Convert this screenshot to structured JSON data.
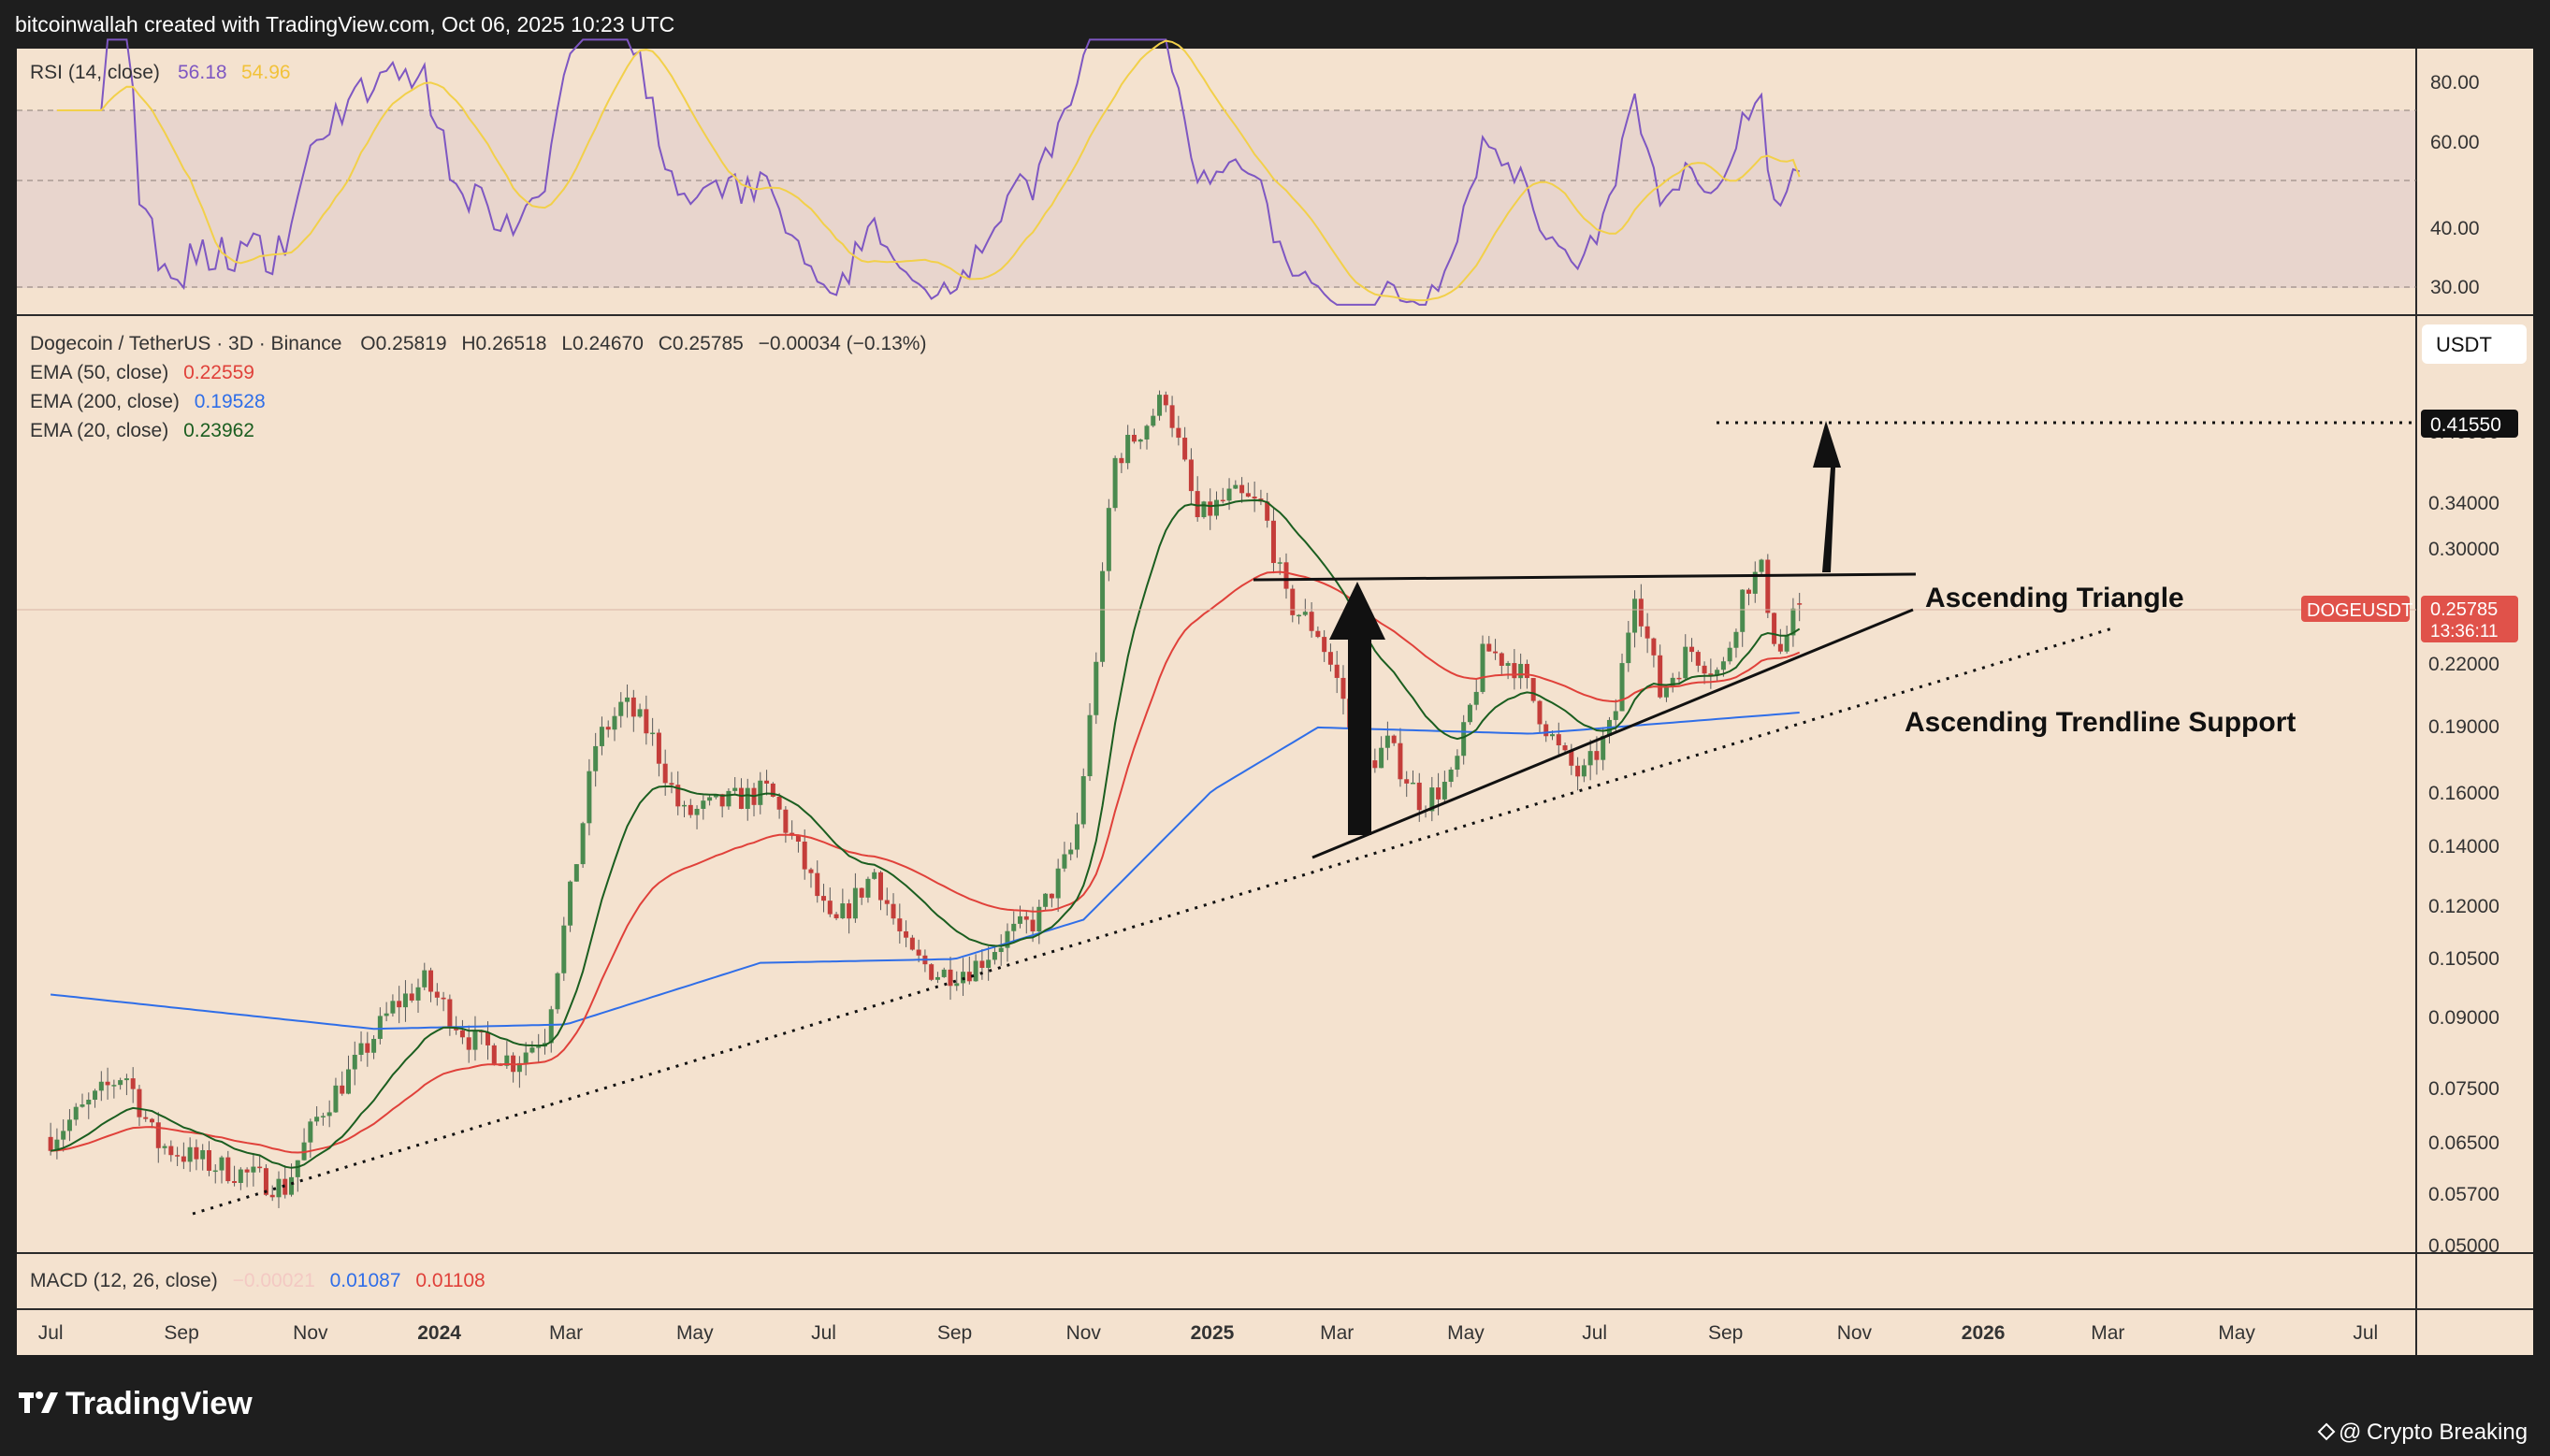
{
  "header": {
    "credit": "bitcoinwallah created with TradingView.com, Oct 06, 2025 10:23 UTC"
  },
  "rsi": {
    "label": "RSI (14, close)",
    "value": "56.18",
    "ma_value": "54.96",
    "line_color": "#7e57c2",
    "ma_color": "#f2d04a",
    "bands": [
      70,
      50,
      30
    ],
    "axis_labels": [
      "80.00",
      "60.00",
      "40.00",
      "30.00"
    ]
  },
  "legend": {
    "symbol_line": "Dogecoin / TetherUS · 3D · Binance",
    "o": "O0.25819",
    "h": "H0.26518",
    "l": "L0.24670",
    "c": "C0.25785",
    "change": "−0.00034 (−0.13%)",
    "ema50_label": "EMA (50, close)",
    "ema50_value": "0.22559",
    "ema50_color": "#e0413a",
    "ema200_label": "EMA (200, close)",
    "ema200_value": "0.19528",
    "ema200_color": "#2f6ee8",
    "ema20_label": "EMA (20, close)",
    "ema20_value": "0.23962",
    "ema20_color": "#1b5e20"
  },
  "currency": "USDT",
  "price_axis": [
    "0.40000",
    "0.34000",
    "0.30000",
    "0.22000",
    "0.19000",
    "0.16000",
    "0.14000",
    "0.12000",
    "0.10500",
    "0.09000",
    "0.07500",
    "0.06500",
    "0.05700",
    "0.05000"
  ],
  "target_tag": "0.41550",
  "ticker_tag": {
    "symbol": "DOGEUSDT",
    "price": "0.25785",
    "countdown": "13:36:11",
    "color": "#e0524a"
  },
  "annotations": {
    "triangle": "Ascending Triangle",
    "trendline": "Ascending Trendline Support"
  },
  "macd": {
    "label": "MACD (12, 26, close)",
    "hist": "−0.00021",
    "macd": "0.01087",
    "signal": "0.01108"
  },
  "time_axis": [
    "Jul",
    "Sep",
    "Nov",
    "2024",
    "Mar",
    "May",
    "Jul",
    "Sep",
    "Nov",
    "2025",
    "Mar",
    "May",
    "Jul",
    "Sep",
    "Nov",
    "2026",
    "Mar",
    "May",
    "Jul"
  ],
  "footer": {
    "brand": "TradingView",
    "watermark": "Crypto Breaking"
  },
  "chart_data": {
    "type": "candlestick",
    "title": "Dogecoin / TetherUS · 3D · Binance",
    "scale": "log",
    "ylim": [
      0.05,
      0.42
    ],
    "x_range": [
      "2023-07",
      "2026-07"
    ],
    "ohlc_last": {
      "open": 0.25819,
      "high": 0.26518,
      "low": 0.2467,
      "close": 0.25785
    },
    "price_path": [
      [
        "2023-07-01",
        0.066
      ],
      [
        "2023-07-20",
        0.072
      ],
      [
        "2023-08-05",
        0.078
      ],
      [
        "2023-08-20",
        0.065
      ],
      [
        "2023-09-10",
        0.062
      ],
      [
        "2023-10-01",
        0.06
      ],
      [
        "2023-10-20",
        0.058
      ],
      [
        "2023-11-05",
        0.07
      ],
      [
        "2023-11-20",
        0.078
      ],
      [
        "2023-12-10",
        0.092
      ],
      [
        "2023-12-25",
        0.098
      ],
      [
        "2024-01-15",
        0.085
      ],
      [
        "2024-02-05",
        0.08
      ],
      [
        "2024-02-20",
        0.086
      ],
      [
        "2024-03-05",
        0.13
      ],
      [
        "2024-03-15",
        0.18
      ],
      [
        "2024-03-28",
        0.2
      ],
      [
        "2024-04-10",
        0.185
      ],
      [
        "2024-04-25",
        0.15
      ],
      [
        "2024-05-15",
        0.155
      ],
      [
        "2024-06-05",
        0.16
      ],
      [
        "2024-06-20",
        0.135
      ],
      [
        "2024-07-05",
        0.112
      ],
      [
        "2024-07-25",
        0.13
      ],
      [
        "2024-08-10",
        0.105
      ],
      [
        "2024-08-25",
        0.1
      ],
      [
        "2024-09-10",
        0.102
      ],
      [
        "2024-09-25",
        0.11
      ],
      [
        "2024-10-10",
        0.115
      ],
      [
        "2024-10-28",
        0.14
      ],
      [
        "2024-11-05",
        0.2
      ],
      [
        "2024-11-15",
        0.37
      ],
      [
        "2024-12-01",
        0.41
      ],
      [
        "2024-12-10",
        0.44
      ],
      [
        "2024-12-25",
        0.32
      ],
      [
        "2025-01-10",
        0.34
      ],
      [
        "2025-01-25",
        0.33
      ],
      [
        "2025-02-05",
        0.26
      ],
      [
        "2025-02-20",
        0.24
      ],
      [
        "2025-03-05",
        0.2
      ],
      [
        "2025-03-10",
        0.165
      ],
      [
        "2025-03-25",
        0.18
      ],
      [
        "2025-04-10",
        0.155
      ],
      [
        "2025-04-25",
        0.165
      ],
      [
        "2025-05-10",
        0.23
      ],
      [
        "2025-05-25",
        0.22
      ],
      [
        "2025-06-15",
        0.175
      ],
      [
        "2025-06-25",
        0.165
      ],
      [
        "2025-07-10",
        0.19
      ],
      [
        "2025-07-20",
        0.27
      ],
      [
        "2025-08-01",
        0.205
      ],
      [
        "2025-08-15",
        0.23
      ],
      [
        "2025-08-30",
        0.215
      ],
      [
        "2025-09-10",
        0.27
      ],
      [
        "2025-09-18",
        0.28
      ],
      [
        "2025-09-26",
        0.225
      ],
      [
        "2025-10-06",
        0.25785
      ]
    ],
    "ema200_path": [
      [
        "2023-07-01",
        0.095
      ],
      [
        "2023-12-01",
        0.087
      ],
      [
        "2024-03-01",
        0.088
      ],
      [
        "2024-06-01",
        0.103
      ],
      [
        "2024-09-01",
        0.104
      ],
      [
        "2024-11-01",
        0.115
      ],
      [
        "2025-01-01",
        0.16
      ],
      [
        "2025-02-20",
        0.188
      ],
      [
        "2025-06-01",
        0.185
      ],
      [
        "2025-10-06",
        0.19528
      ]
    ],
    "ema50_final": 0.22559,
    "ema20_final": 0.23962,
    "ema200_final": 0.19528,
    "target": 0.4155,
    "ascending_triangle": {
      "resistance": [
        [
          "2025-01-20",
          0.272
        ],
        [
          "2025-11-10",
          0.276
        ]
      ],
      "support": [
        [
          "2025-02-20",
          0.135
        ],
        [
          "2025-11-10",
          0.253
        ]
      ]
    },
    "ascending_trendline_support": [
      [
        "2023-09-15",
        0.056
      ],
      [
        "2025-12-05",
        0.258
      ]
    ],
    "rsi_last": 56.18,
    "rsi_ma_last": 54.96
  }
}
